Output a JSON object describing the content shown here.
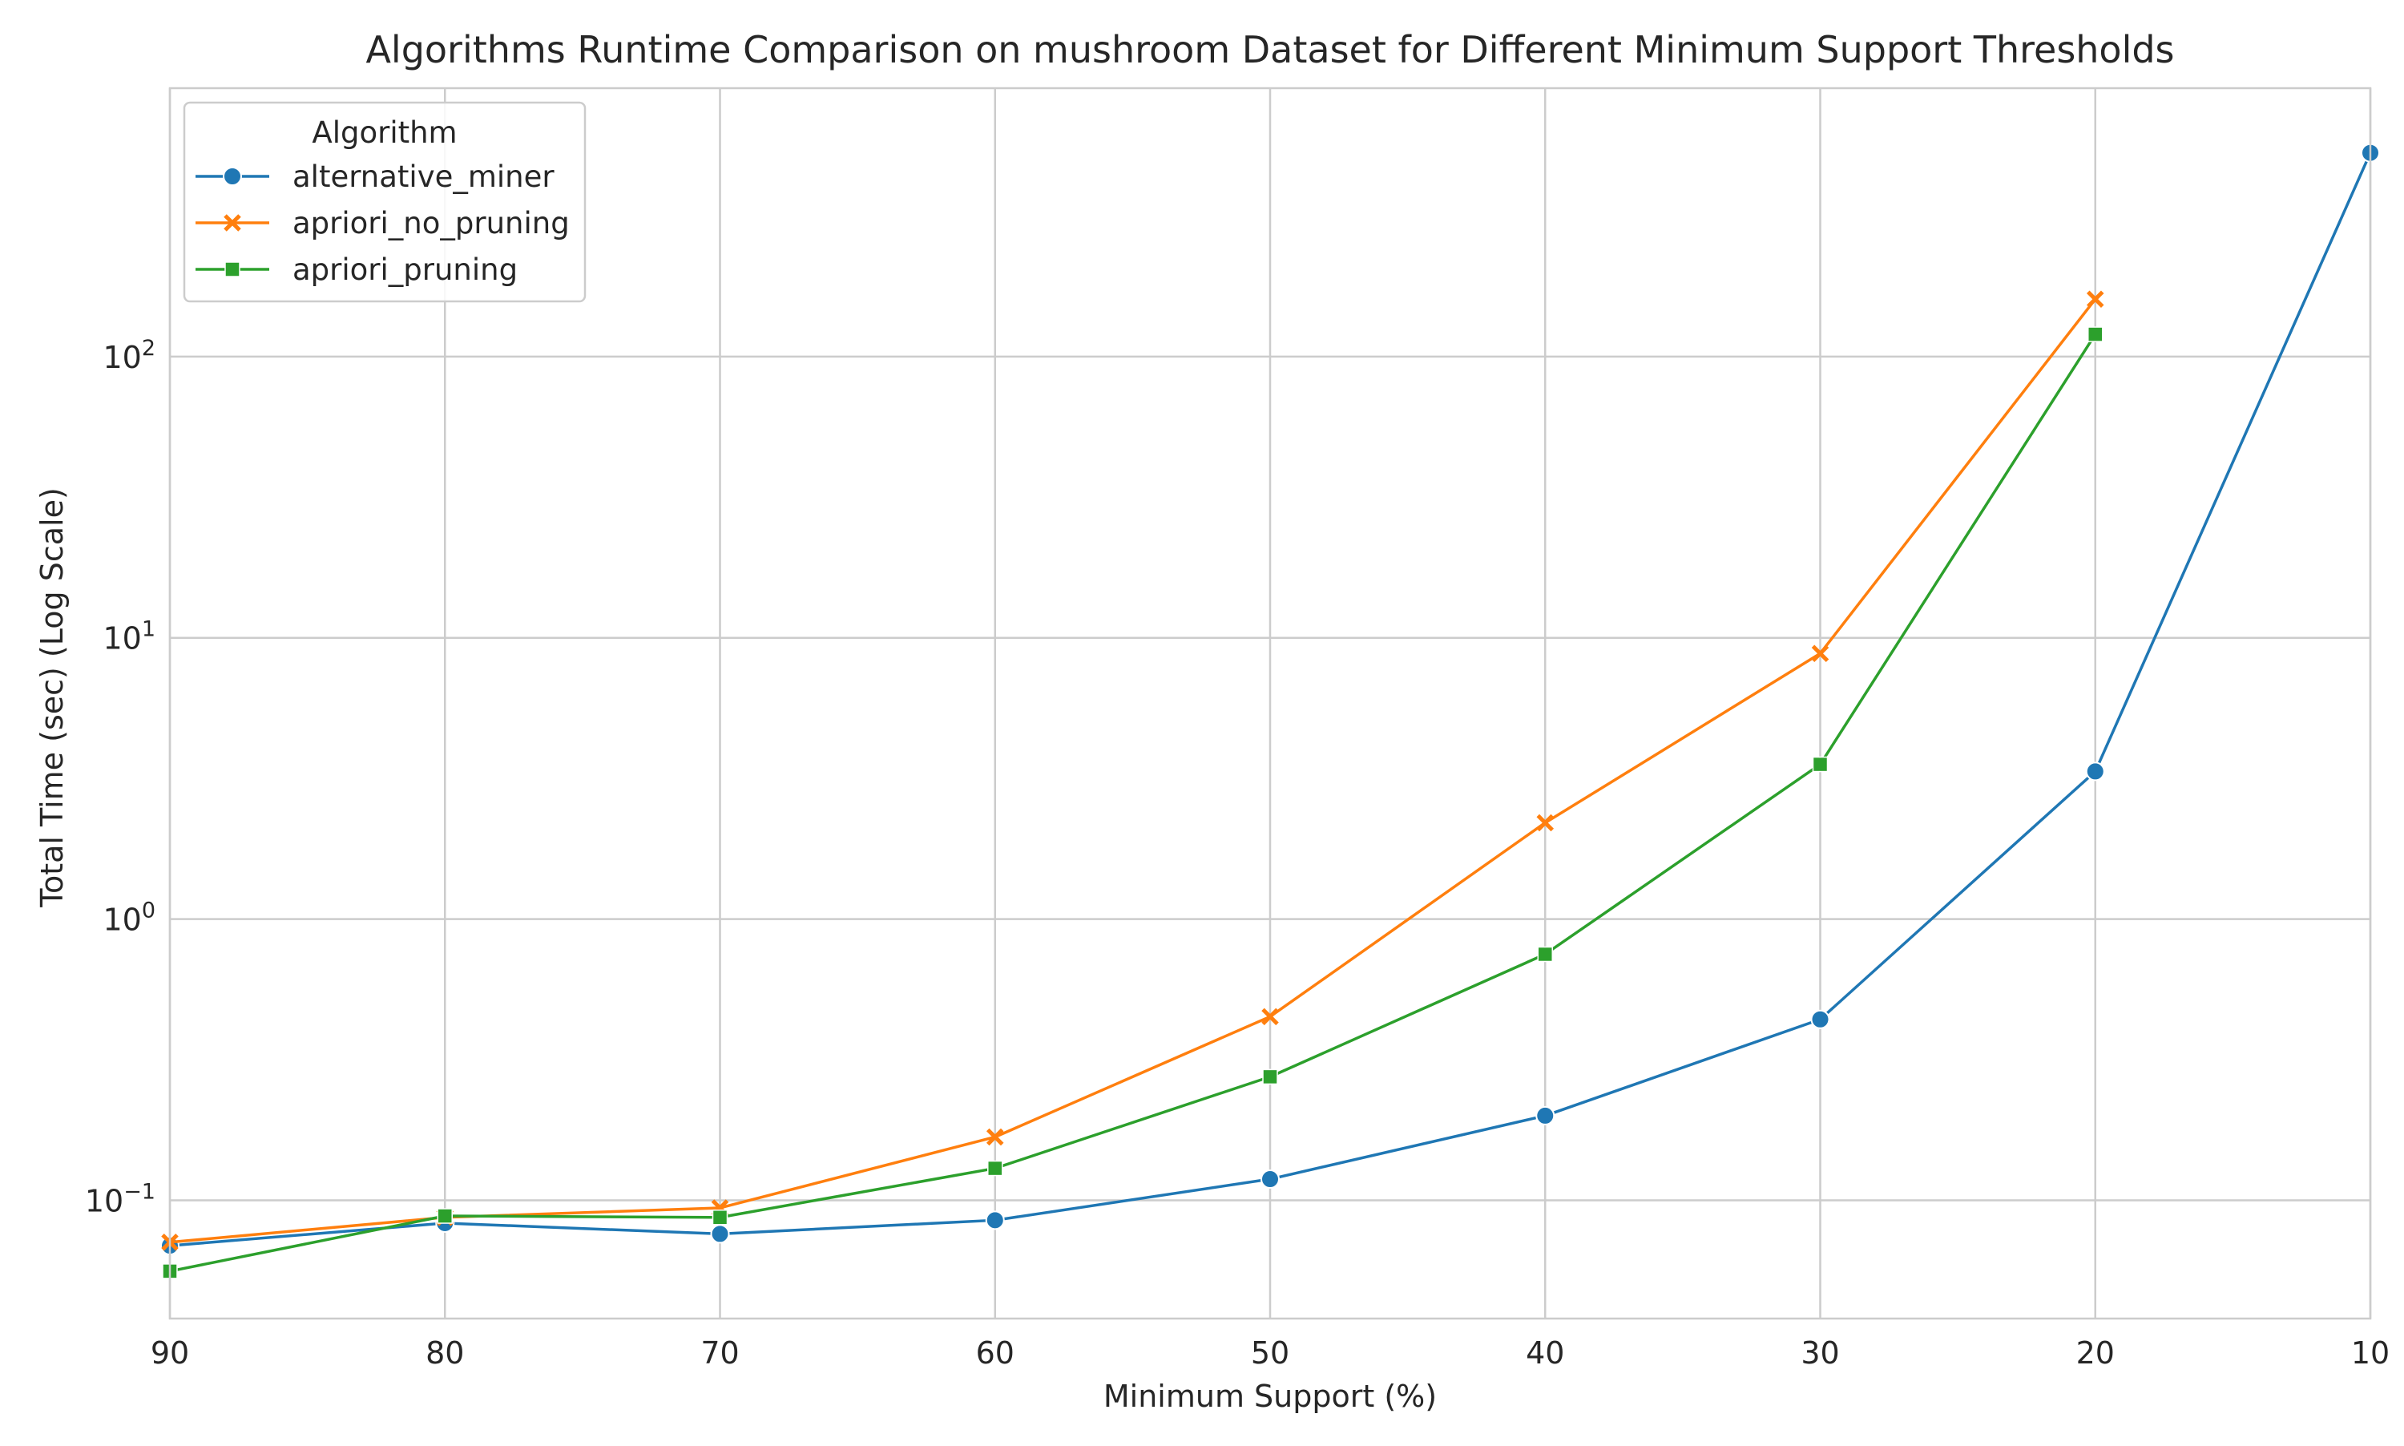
{
  "chart_data": {
    "type": "line",
    "title": "Algorithms Runtime Comparison on mushroom Dataset for Different Minimum Support Thresholds",
    "xlabel": "Minimum Support (%)",
    "ylabel": "Total Time (sec) (Log Scale)",
    "x": [
      90,
      80,
      70,
      60,
      50,
      40,
      30,
      20,
      10
    ],
    "x_ticks": [
      "90",
      "80",
      "70",
      "60",
      "50",
      "40",
      "30",
      "20",
      "10"
    ],
    "xlim": [
      90,
      10
    ],
    "x_reversed": true,
    "yscale": "log",
    "ylim": [
      0.038,
      900
    ],
    "y_ticks": [
      {
        "base": "10",
        "exp": "−1",
        "value": 0.1
      },
      {
        "base": "10",
        "exp": "0",
        "value": 1
      },
      {
        "base": "10",
        "exp": "1",
        "value": 10
      },
      {
        "base": "10",
        "exp": "2",
        "value": 100
      }
    ],
    "grid": true,
    "legend": {
      "title": "Algorithm",
      "position": "top-left"
    },
    "series": [
      {
        "name": "alternative_miner",
        "color": "#1f77b4",
        "marker": "circle",
        "x": [
          90,
          80,
          70,
          60,
          50,
          40,
          30,
          20,
          10
        ],
        "values": [
          0.069,
          0.083,
          0.076,
          0.085,
          0.119,
          0.2,
          0.44,
          3.35,
          530
        ]
      },
      {
        "name": "apriori_no_pruning",
        "color": "#ff7f0e",
        "marker": "x",
        "x": [
          90,
          80,
          70,
          60,
          50,
          40,
          30,
          20
        ],
        "values": [
          0.071,
          0.087,
          0.094,
          0.168,
          0.45,
          2.2,
          8.8,
          160
        ]
      },
      {
        "name": "apriori_pruning",
        "color": "#2ca02c",
        "marker": "square",
        "x": [
          90,
          80,
          70,
          60,
          50,
          40,
          30,
          20
        ],
        "values": [
          0.056,
          0.088,
          0.087,
          0.13,
          0.275,
          0.75,
          3.55,
          120
        ]
      }
    ]
  }
}
